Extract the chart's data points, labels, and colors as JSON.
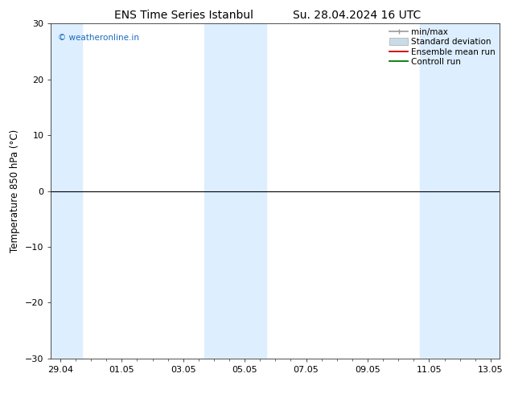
{
  "title_left": "ENS Time Series Istanbul",
  "title_right": "Su. 28.04.2024 16 UTC",
  "ylabel": "Temperature 850 hPa (°C)",
  "watermark": "© weatheronline.in",
  "watermark_color": "#1a6abf",
  "ylim": [
    -30,
    30
  ],
  "yticks": [
    -30,
    -20,
    -10,
    0,
    10,
    20,
    30
  ],
  "xtick_labels": [
    "29.04",
    "01.05",
    "03.05",
    "05.05",
    "07.05",
    "09.05",
    "11.05",
    "13.05"
  ],
  "xtick_positions": [
    0,
    2,
    4,
    6,
    8,
    10,
    12,
    14
  ],
  "xlim": [
    -0.3,
    14.3
  ],
  "shaded_bands": [
    {
      "start": -0.3,
      "end": 0.7
    },
    {
      "start": 4.7,
      "end": 6.7
    },
    {
      "start": 11.7,
      "end": 14.3
    }
  ],
  "shade_color": "#ddeeff",
  "ensemble_mean_color": "#cc0000",
  "control_run_color": "#007700",
  "minmax_color": "#999999",
  "std_dev_color": "#c8dce8",
  "bg_color": "#ffffff",
  "plot_bg_color": "#f5f5f5",
  "title_fontsize": 10,
  "label_fontsize": 8.5,
  "tick_fontsize": 8,
  "legend_fontsize": 7.5
}
